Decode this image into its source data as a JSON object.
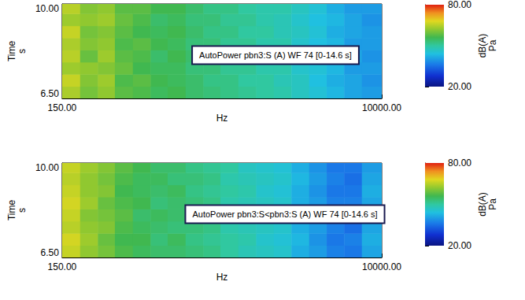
{
  "chart_data": [
    {
      "type": "heatmap",
      "annotation": "AutoPower pbn3:S (A) WF 74 [0-14.6 s]",
      "xlabel": "Hz",
      "ylabel": "Time",
      "yunit": "s",
      "log": "x",
      "xlim": [
        150,
        10000
      ],
      "xticks": [
        {
          "value": 150,
          "label": "150.00"
        },
        {
          "value": 10000,
          "label": "10000.00"
        }
      ],
      "ylim": [
        6.3,
        10.2
      ],
      "yticks": [
        {
          "value": 6.5,
          "label": "6.50"
        },
        {
          "value": 10,
          "label": "10.00"
        }
      ],
      "x_edges": [
        150,
        190,
        240,
        300,
        380,
        480,
        600,
        760,
        960,
        1200,
        1520,
        1920,
        2420,
        3050,
        3850,
        4850,
        6100,
        7700,
        10000
      ],
      "y_edges": [
        6.3,
        6.8,
        7.3,
        7.8,
        8.3,
        8.8,
        9.3,
        9.8,
        10.2
      ],
      "cells": [
        [
          64,
          60,
          62,
          58,
          57,
          55,
          56,
          54,
          53,
          52,
          51,
          50,
          49,
          47,
          45,
          43,
          41,
          40
        ],
        [
          66,
          61,
          63,
          57,
          58,
          56,
          55,
          54,
          52,
          52,
          50,
          50,
          48,
          47,
          44,
          42,
          41,
          39
        ],
        [
          63,
          62,
          61,
          59,
          56,
          55,
          55,
          53,
          53,
          51,
          51,
          49,
          49,
          46,
          45,
          43,
          40,
          40
        ],
        [
          65,
          59,
          63,
          58,
          57,
          54,
          56,
          54,
          52,
          52,
          50,
          50,
          48,
          47,
          45,
          42,
          41,
          39
        ],
        [
          64,
          61,
          62,
          57,
          58,
          56,
          55,
          53,
          53,
          51,
          51,
          49,
          49,
          46,
          44,
          43,
          40,
          40
        ],
        [
          66,
          60,
          61,
          58,
          56,
          55,
          56,
          54,
          52,
          52,
          50,
          50,
          48,
          47,
          45,
          42,
          41,
          40
        ],
        [
          63,
          62,
          63,
          59,
          57,
          54,
          55,
          53,
          53,
          51,
          51,
          49,
          48,
          46,
          44,
          43,
          41,
          39
        ],
        [
          65,
          61,
          62,
          58,
          58,
          56,
          56,
          54,
          52,
          52,
          50,
          49,
          49,
          47,
          45,
          42,
          40,
          40
        ]
      ],
      "colorbar": {
        "label": "dB(A)",
        "unit": "Pa",
        "range": [
          20,
          80
        ],
        "ticks": [
          {
            "value": 20,
            "label": "20.00"
          },
          {
            "value": 80,
            "label": "80.00"
          }
        ]
      }
    },
    {
      "type": "heatmap",
      "annotation": "AutoPower pbn3:S<pbn3:S (A) WF 74 [0-14.6 s]",
      "xlabel": "Hz",
      "ylabel": "Time",
      "yunit": "s",
      "log": "x",
      "xlim": [
        150,
        10000
      ],
      "xticks": [
        {
          "value": 150,
          "label": "150.00"
        },
        {
          "value": 10000,
          "label": "10000.00"
        }
      ],
      "ylim": [
        6.3,
        10.2
      ],
      "yticks": [
        {
          "value": 6.5,
          "label": "6.50"
        },
        {
          "value": 10,
          "label": "10.00"
        }
      ],
      "x_edges": [
        150,
        190,
        240,
        300,
        380,
        480,
        600,
        760,
        960,
        1200,
        1520,
        1920,
        2420,
        3050,
        3850,
        4850,
        6100,
        7700,
        10000
      ],
      "y_edges": [
        6.3,
        6.8,
        7.3,
        7.8,
        8.3,
        8.8,
        9.3,
        9.8,
        10.2
      ],
      "cells": [
        [
          66,
          62,
          60,
          57,
          55,
          54,
          54,
          53,
          52,
          50,
          48,
          47,
          46,
          42,
          40,
          37,
          36,
          41
        ],
        [
          67,
          63,
          59,
          56,
          56,
          53,
          55,
          52,
          51,
          50,
          49,
          46,
          45,
          43,
          39,
          36,
          37,
          42
        ],
        [
          65,
          62,
          61,
          57,
          55,
          54,
          53,
          53,
          52,
          49,
          48,
          47,
          46,
          42,
          40,
          37,
          35,
          41
        ],
        [
          66,
          61,
          60,
          58,
          54,
          55,
          54,
          52,
          51,
          50,
          47,
          46,
          45,
          43,
          39,
          36,
          36,
          40
        ],
        [
          67,
          63,
          59,
          57,
          56,
          53,
          54,
          53,
          52,
          49,
          48,
          47,
          46,
          42,
          40,
          37,
          37,
          41
        ],
        [
          66,
          62,
          61,
          56,
          55,
          54,
          55,
          52,
          51,
          50,
          49,
          46,
          45,
          42,
          39,
          36,
          36,
          42
        ],
        [
          65,
          62,
          60,
          57,
          55,
          55,
          53,
          53,
          52,
          49,
          48,
          47,
          46,
          43,
          40,
          37,
          35,
          41
        ],
        [
          66,
          63,
          61,
          58,
          56,
          54,
          54,
          52,
          51,
          50,
          47,
          46,
          45,
          42,
          39,
          36,
          36,
          40
        ]
      ],
      "colorbar": {
        "label": "dB(A)",
        "unit": "Pa",
        "range": [
          20,
          80
        ],
        "ticks": [
          {
            "value": 20,
            "label": "20.00"
          },
          {
            "value": 80,
            "label": "80.00"
          }
        ]
      }
    }
  ]
}
